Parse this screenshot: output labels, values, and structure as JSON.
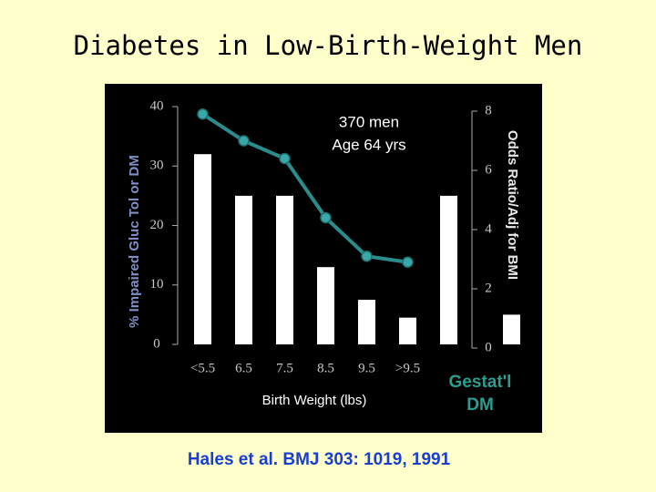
{
  "chart_data": {
    "type": "bar",
    "title": "Diabetes in Low-Birth-Weight Men",
    "annotation": [
      "370 men",
      "Age 64 yrs"
    ],
    "xlabel": "Birth Weight (lbs)",
    "ylabel": "% Impaired Gluc Tol or DM",
    "y2label": "Odds Ratio/Adj for BMI",
    "categories": [
      "<5.5",
      "6.5",
      "7.5",
      "8.5",
      "9.5",
      ">9.5",
      null
    ],
    "series": [
      {
        "type": "bar",
        "color": "#ffffff",
        "values": [
          32,
          25,
          25,
          13,
          7.5,
          4.5,
          25
        ]
      },
      {
        "type": "line",
        "axis": "y2",
        "color": "#2a8c8c",
        "values": [
          7.9,
          7.0,
          6.4,
          4.4,
          3.1,
          2.9,
          null
        ]
      }
    ],
    "gestational": {
      "label": [
        "Gestat'l",
        "DM"
      ],
      "value": 5,
      "color": "#ffffff"
    },
    "ylim": [
      0,
      40
    ],
    "yticks": [
      0,
      10,
      20,
      30,
      40
    ],
    "y2lim": [
      0,
      8
    ],
    "y2ticks": [
      0,
      2,
      4,
      6,
      8
    ],
    "source": "Hales et al. BMJ 303: 1019, 1991"
  }
}
